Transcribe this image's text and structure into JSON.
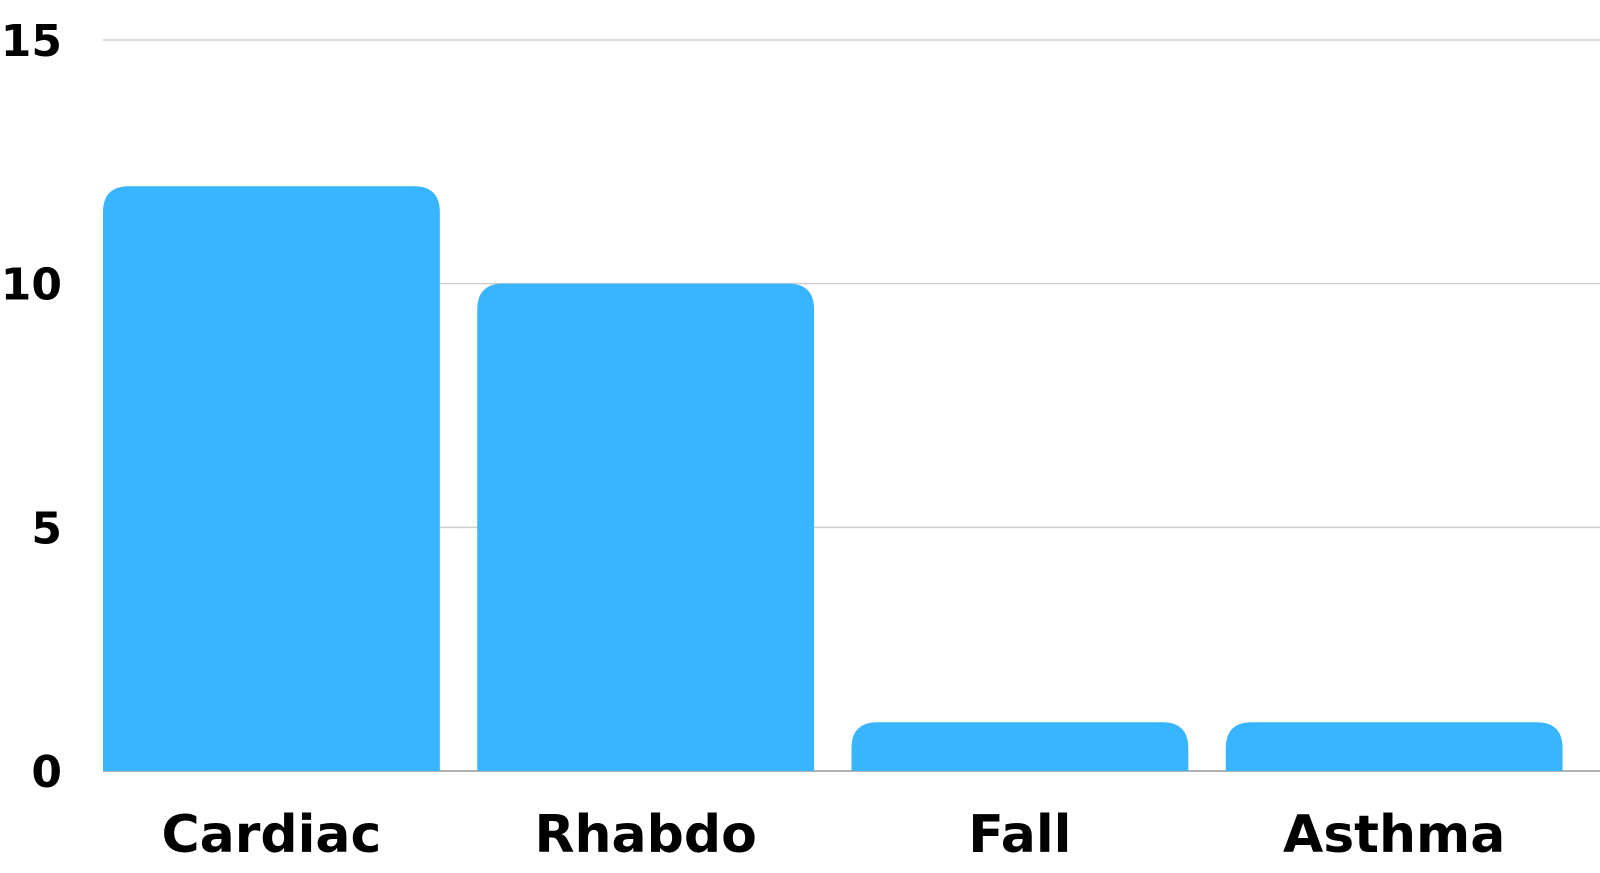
{
  "chart_data": {
    "type": "bar",
    "categories": [
      "Cardiac",
      "Rhabdo",
      "Fall",
      "Asthma"
    ],
    "values": [
      12,
      10,
      1,
      1
    ],
    "title": "",
    "xlabel": "",
    "ylabel": "",
    "ylim": [
      0,
      15
    ],
    "yticks": [
      "0",
      "5",
      "10",
      "15"
    ],
    "grid": true,
    "legend": "none",
    "bar_color": "#38b5fe"
  }
}
